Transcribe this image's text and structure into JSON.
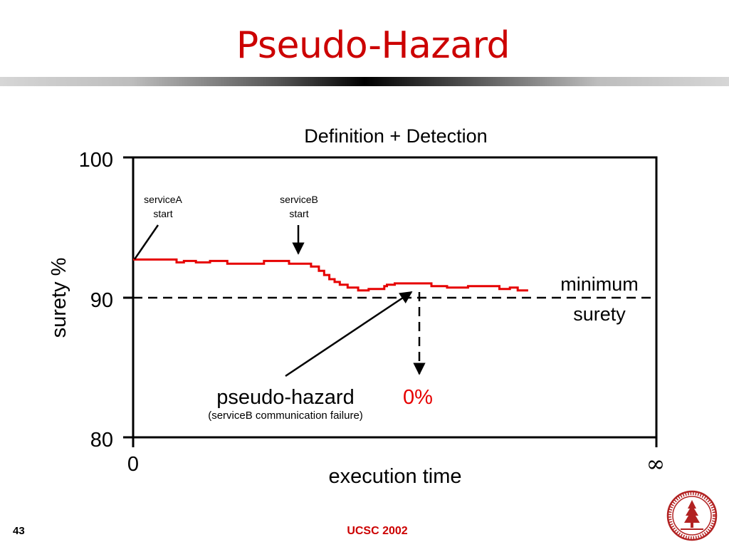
{
  "slide": {
    "title": "Pseudo-Hazard",
    "page_number": "43",
    "footer": "UCSC 2002"
  },
  "chart_data": {
    "type": "line",
    "title": "Definition + Detection",
    "xlabel": "execution time",
    "ylabel": "surety %",
    "ylim": [
      80,
      100
    ],
    "y_ticks": [
      "100",
      "90",
      "80"
    ],
    "x_tick_labels": [
      "0",
      "∞"
    ],
    "series": [
      {
        "color": "#e60000",
        "x": [
          0,
          0.083,
          0.083,
          0.097,
          0.097,
          0.12,
          0.12,
          0.147,
          0.147,
          0.18,
          0.18,
          0.25,
          0.25,
          0.298,
          0.298,
          0.34,
          0.34,
          0.355,
          0.355,
          0.365,
          0.365,
          0.375,
          0.375,
          0.385,
          0.385,
          0.395,
          0.395,
          0.41,
          0.41,
          0.43,
          0.43,
          0.45,
          0.45,
          0.48,
          0.48,
          0.485,
          0.485,
          0.5,
          0.5,
          0.51,
          0.51,
          0.52,
          0.52,
          0.57,
          0.57,
          0.6,
          0.6,
          0.64,
          0.64,
          0.7,
          0.7,
          0.71,
          0.71,
          0.72,
          0.72,
          0.735,
          0.735,
          0.755
        ],
        "y": [
          92.7,
          92.7,
          92.5,
          92.5,
          92.6,
          92.6,
          92.5,
          92.5,
          92.6,
          92.6,
          92.4,
          92.4,
          92.6,
          92.6,
          92.4,
          92.4,
          92.2,
          92.2,
          91.9,
          91.9,
          91.6,
          91.6,
          91.3,
          91.3,
          91.1,
          91.1,
          90.9,
          90.9,
          90.7,
          90.7,
          90.5,
          90.5,
          90.6,
          90.6,
          90.8,
          90.8,
          90.9,
          90.9,
          91.0,
          91.0,
          91.0,
          91.0,
          91.0,
          91.0,
          90.8,
          90.8,
          90.7,
          90.7,
          90.8,
          90.8,
          90.6,
          90.6,
          90.6,
          90.6,
          90.7,
          90.7,
          90.5,
          90.5
        ]
      }
    ],
    "threshold": {
      "value": 90,
      "label_line1": "minimum",
      "label_line2": "surety"
    },
    "annotations": {
      "serviceA": {
        "line1": "serviceA",
        "line2": "start",
        "x": 0
      },
      "serviceB": {
        "line1": "serviceB",
        "line2": "start",
        "x": 0.32
      },
      "pseudo_hazard": {
        "label": "pseudo-hazard",
        "sublabel": "(serviceB communication failure)",
        "value_label": "0%",
        "value_color": "#e60000"
      }
    }
  }
}
